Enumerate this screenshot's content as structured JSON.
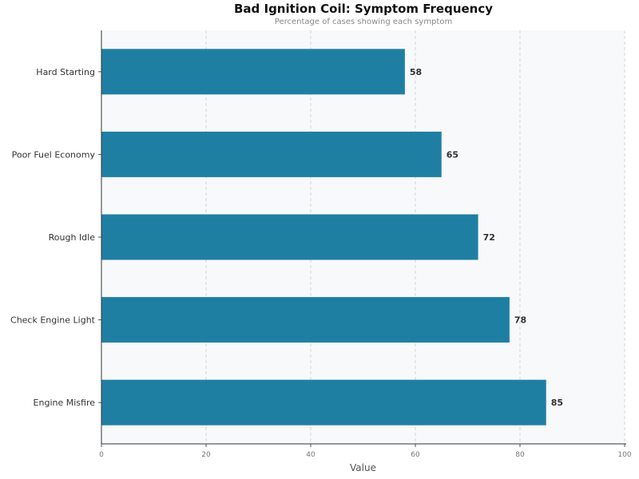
{
  "chart_data": {
    "type": "bar",
    "orientation": "horizontal",
    "title": "Bad Ignition Coil: Symptom Frequency",
    "subtitle": "Percentage of cases showing each symptom",
    "categories": [
      "Hard Starting",
      "Poor Fuel Economy",
      "Rough Idle",
      "Check Engine Light",
      "Engine Misfire"
    ],
    "values": [
      58,
      65,
      72,
      78,
      85
    ],
    "xlabel": "Value",
    "ylabel": "",
    "xlim": [
      0,
      100
    ],
    "xticks": [
      0,
      20,
      40,
      60,
      80,
      100
    ],
    "grid": "vertical dashed",
    "bar_color": "#1f7fa3",
    "background": "#f7f9fb"
  }
}
